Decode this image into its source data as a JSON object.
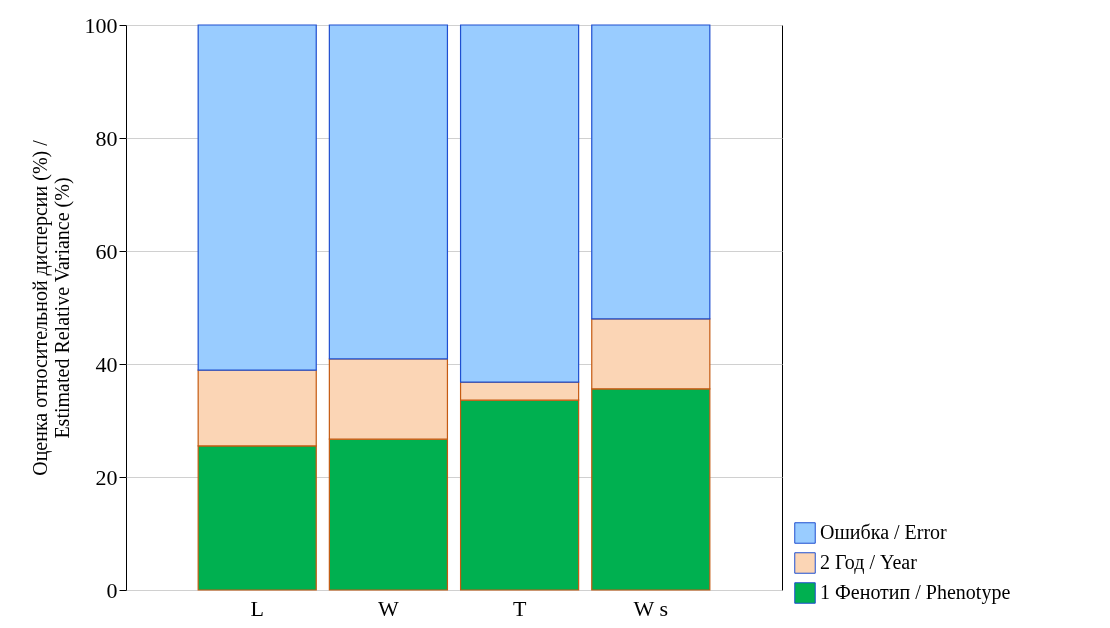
{
  "chart_data": {
    "type": "bar",
    "stacked": true,
    "ylabel": "Оценка относительной дисперсии (%) / Estimated Relative Variance (%)",
    "categories": [
      "L",
      "W",
      "T",
      "W s"
    ],
    "series": [
      {
        "name": "1 Фенотип / Phenotype",
        "color": "#00b050",
        "values": [
          25.5,
          26.7,
          33.6,
          35.6
        ]
      },
      {
        "name": "2 Год / Year",
        "color": "#fbd5b5",
        "values": [
          13.4,
          14.2,
          3.2,
          12.4
        ]
      },
      {
        "name": "Ошибка / Error",
        "color": "#99ccff",
        "values": [
          61.1,
          59.1,
          63.2,
          52.0
        ]
      }
    ],
    "ylim": [
      0,
      100
    ],
    "yticks": [
      0,
      20,
      40,
      60,
      80,
      100
    ],
    "grid": "y",
    "legend": "bottom right"
  }
}
